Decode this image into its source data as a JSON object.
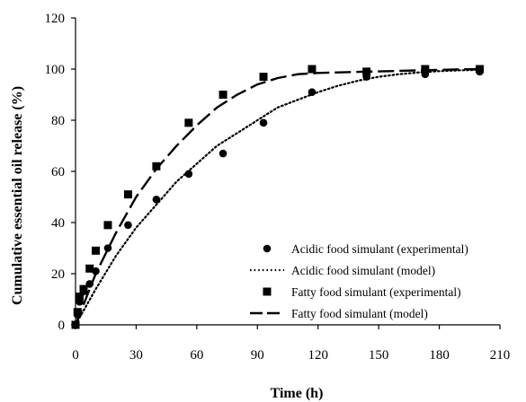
{
  "chart_data": {
    "type": "line",
    "title": "",
    "xlabel": "Time (h)",
    "ylabel": "Cumulative essential oil release (%)",
    "xlim": [
      0,
      210
    ],
    "ylim": [
      0,
      120
    ],
    "xticks": [
      0,
      30,
      60,
      90,
      120,
      150,
      180,
      210
    ],
    "yticks": [
      0,
      20,
      40,
      60,
      80,
      100,
      120
    ],
    "x_tick_labels": [
      "0",
      "30",
      "60",
      "90",
      "120",
      "150",
      "180",
      "210"
    ],
    "y_tick_labels": [
      "0",
      "20",
      "40",
      "60",
      "80",
      "100",
      "120"
    ],
    "grid": false,
    "legend_position": "bottom-right",
    "series": [
      {
        "name": "Acidic food simulant (experimental)",
        "kind": "scatter",
        "marker": "circle",
        "x": [
          0,
          1,
          2,
          4,
          7,
          10,
          16,
          26,
          40,
          56,
          73,
          93,
          117,
          144,
          173,
          200
        ],
        "y": [
          0,
          4,
          9,
          13,
          16,
          21,
          30,
          39,
          49,
          59,
          67,
          79,
          91,
          97,
          98,
          99
        ]
      },
      {
        "name": "Acidic food simulant (model)",
        "kind": "line",
        "line_style": "dotted",
        "x": [
          0,
          10,
          20,
          30,
          40,
          50,
          60,
          70,
          80,
          90,
          100,
          110,
          120,
          130,
          140,
          150,
          160,
          170,
          180,
          190,
          200
        ],
        "y": [
          0,
          14,
          27,
          38,
          47,
          56,
          63,
          70,
          75,
          80,
          85,
          88,
          91,
          93.5,
          95.5,
          97,
          98,
          98.7,
          99.2,
          99.5,
          99.7
        ]
      },
      {
        "name": "Fatty food simulant (experimental)",
        "kind": "scatter",
        "marker": "square",
        "x": [
          0,
          1,
          2,
          4,
          7,
          10,
          16,
          26,
          40,
          56,
          73,
          93,
          117,
          144,
          173,
          200
        ],
        "y": [
          0,
          5,
          11,
          14,
          22,
          29,
          39,
          51,
          62,
          79,
          90,
          97,
          100,
          99,
          100,
          100
        ],
        "color": "#000000"
      },
      {
        "name": "Fatty food simulant (model)",
        "kind": "line",
        "line_style": "dashed",
        "x": [
          0,
          10,
          20,
          30,
          40,
          50,
          60,
          70,
          80,
          90,
          100,
          110,
          120,
          130,
          140,
          150,
          160,
          170,
          180,
          190,
          200
        ],
        "y": [
          0,
          20,
          36,
          50,
          61,
          70,
          78,
          85,
          90,
          94,
          96.5,
          98,
          98.5,
          98.7,
          98.9,
          99.1,
          99.3,
          99.5,
          99.7,
          99.9,
          100
        ]
      }
    ]
  }
}
